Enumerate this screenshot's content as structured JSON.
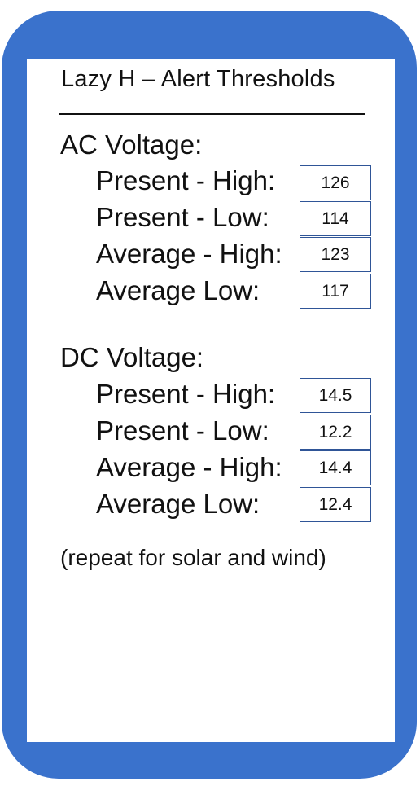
{
  "header": {
    "title": "Lazy H –  Alert Thresholds"
  },
  "sections": [
    {
      "title": "AC Voltage:",
      "rows": [
        {
          "label": "Present - High:",
          "value": "126"
        },
        {
          "label": "Present - Low:",
          "value": "114"
        },
        {
          "label": "Average - High:",
          "value": "123"
        },
        {
          "label": "Average Low:",
          "value": "117"
        }
      ]
    },
    {
      "title": "DC Voltage:",
      "rows": [
        {
          "label": "Present - High:",
          "value": "14.5"
        },
        {
          "label": "Present - Low:",
          "value": "12.2"
        },
        {
          "label": "Average - High:",
          "value": "14.4"
        },
        {
          "label": "Average Low:",
          "value": "12.4"
        }
      ]
    }
  ],
  "footer": {
    "note": "(repeat for solar and wind)"
  },
  "colors": {
    "frame": "#3a72cc",
    "box_border": "#2f5597"
  }
}
